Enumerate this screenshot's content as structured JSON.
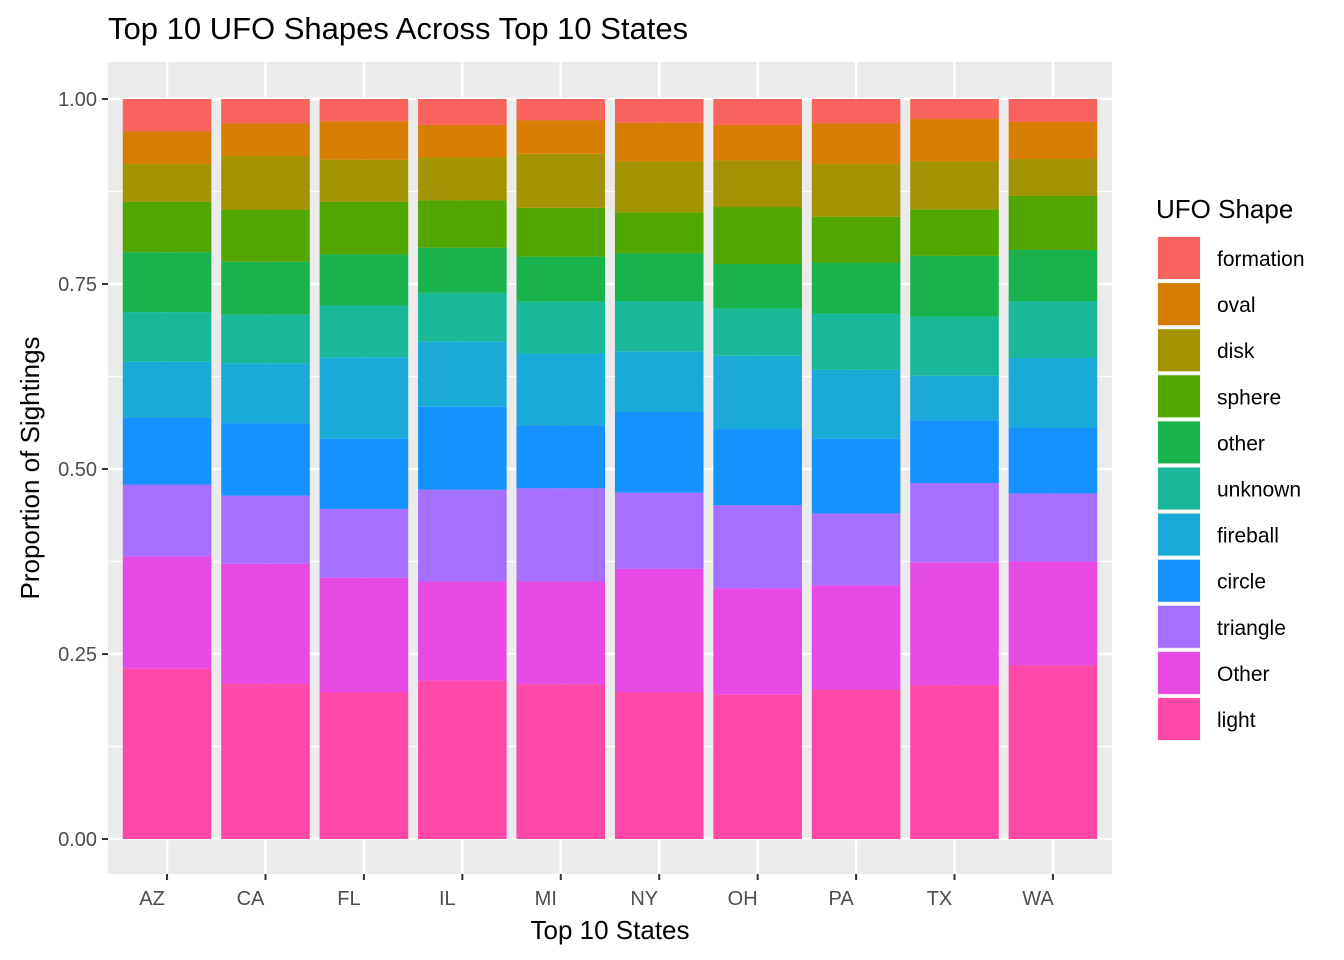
{
  "chart_data": {
    "type": "bar",
    "stacked": true,
    "title": "Top 10 UFO Shapes Across Top 10 States",
    "xlabel": "Top 10 States",
    "ylabel": "Proportion of Sightings",
    "ylim": [
      0,
      1
    ],
    "yticks": [
      "0.00",
      "0.25",
      "0.50",
      "0.75",
      "1.00"
    ],
    "grid": true,
    "legend_title": "UFO Shape",
    "legend_position": "right",
    "categories": [
      "AZ",
      "CA",
      "FL",
      "IL",
      "MI",
      "NY",
      "OH",
      "PA",
      "TX",
      "WA"
    ],
    "series": [
      {
        "name": "light",
        "color": "#FF48A8",
        "values": [
          0.23,
          0.21,
          0.198,
          0.214,
          0.209,
          0.198,
          0.195,
          0.202,
          0.208,
          0.235
        ]
      },
      {
        "name": "Other",
        "color": "#E749E5",
        "values": [
          0.152,
          0.162,
          0.155,
          0.134,
          0.139,
          0.167,
          0.144,
          0.141,
          0.166,
          0.14
        ]
      },
      {
        "name": "triangle",
        "color": "#A56FFF",
        "values": [
          0.097,
          0.092,
          0.093,
          0.124,
          0.126,
          0.103,
          0.112,
          0.097,
          0.107,
          0.092
        ]
      },
      {
        "name": "circle",
        "color": "#1592FF",
        "values": [
          0.091,
          0.098,
          0.095,
          0.112,
          0.085,
          0.109,
          0.103,
          0.101,
          0.085,
          0.089
        ]
      },
      {
        "name": "fireball",
        "color": "#1AAAD8",
        "values": [
          0.075,
          0.081,
          0.11,
          0.088,
          0.097,
          0.082,
          0.099,
          0.093,
          0.06,
          0.094
        ]
      },
      {
        "name": "unknown",
        "color": "#18B899",
        "values": [
          0.067,
          0.066,
          0.07,
          0.066,
          0.07,
          0.068,
          0.064,
          0.076,
          0.08,
          0.077
        ]
      },
      {
        "name": "other",
        "color": "#19B24D",
        "values": [
          0.081,
          0.071,
          0.069,
          0.061,
          0.061,
          0.065,
          0.06,
          0.069,
          0.082,
          0.069
        ]
      },
      {
        "name": "sphere",
        "color": "#52A600",
        "values": [
          0.068,
          0.07,
          0.071,
          0.064,
          0.066,
          0.055,
          0.077,
          0.062,
          0.063,
          0.073
        ]
      },
      {
        "name": "disk",
        "color": "#A39301",
        "values": [
          0.051,
          0.073,
          0.057,
          0.058,
          0.073,
          0.069,
          0.063,
          0.071,
          0.065,
          0.05
        ]
      },
      {
        "name": "oval",
        "color": "#D77E00",
        "values": [
          0.044,
          0.044,
          0.052,
          0.044,
          0.045,
          0.052,
          0.048,
          0.055,
          0.057,
          0.05
        ]
      },
      {
        "name": "formation",
        "color": "#F8635E",
        "values": [
          0.044,
          0.033,
          0.03,
          0.035,
          0.029,
          0.032,
          0.035,
          0.033,
          0.027,
          0.031
        ]
      }
    ],
    "legend_order": [
      "formation",
      "oval",
      "disk",
      "sphere",
      "other",
      "unknown",
      "fireball",
      "circle",
      "triangle",
      "Other",
      "light"
    ]
  }
}
